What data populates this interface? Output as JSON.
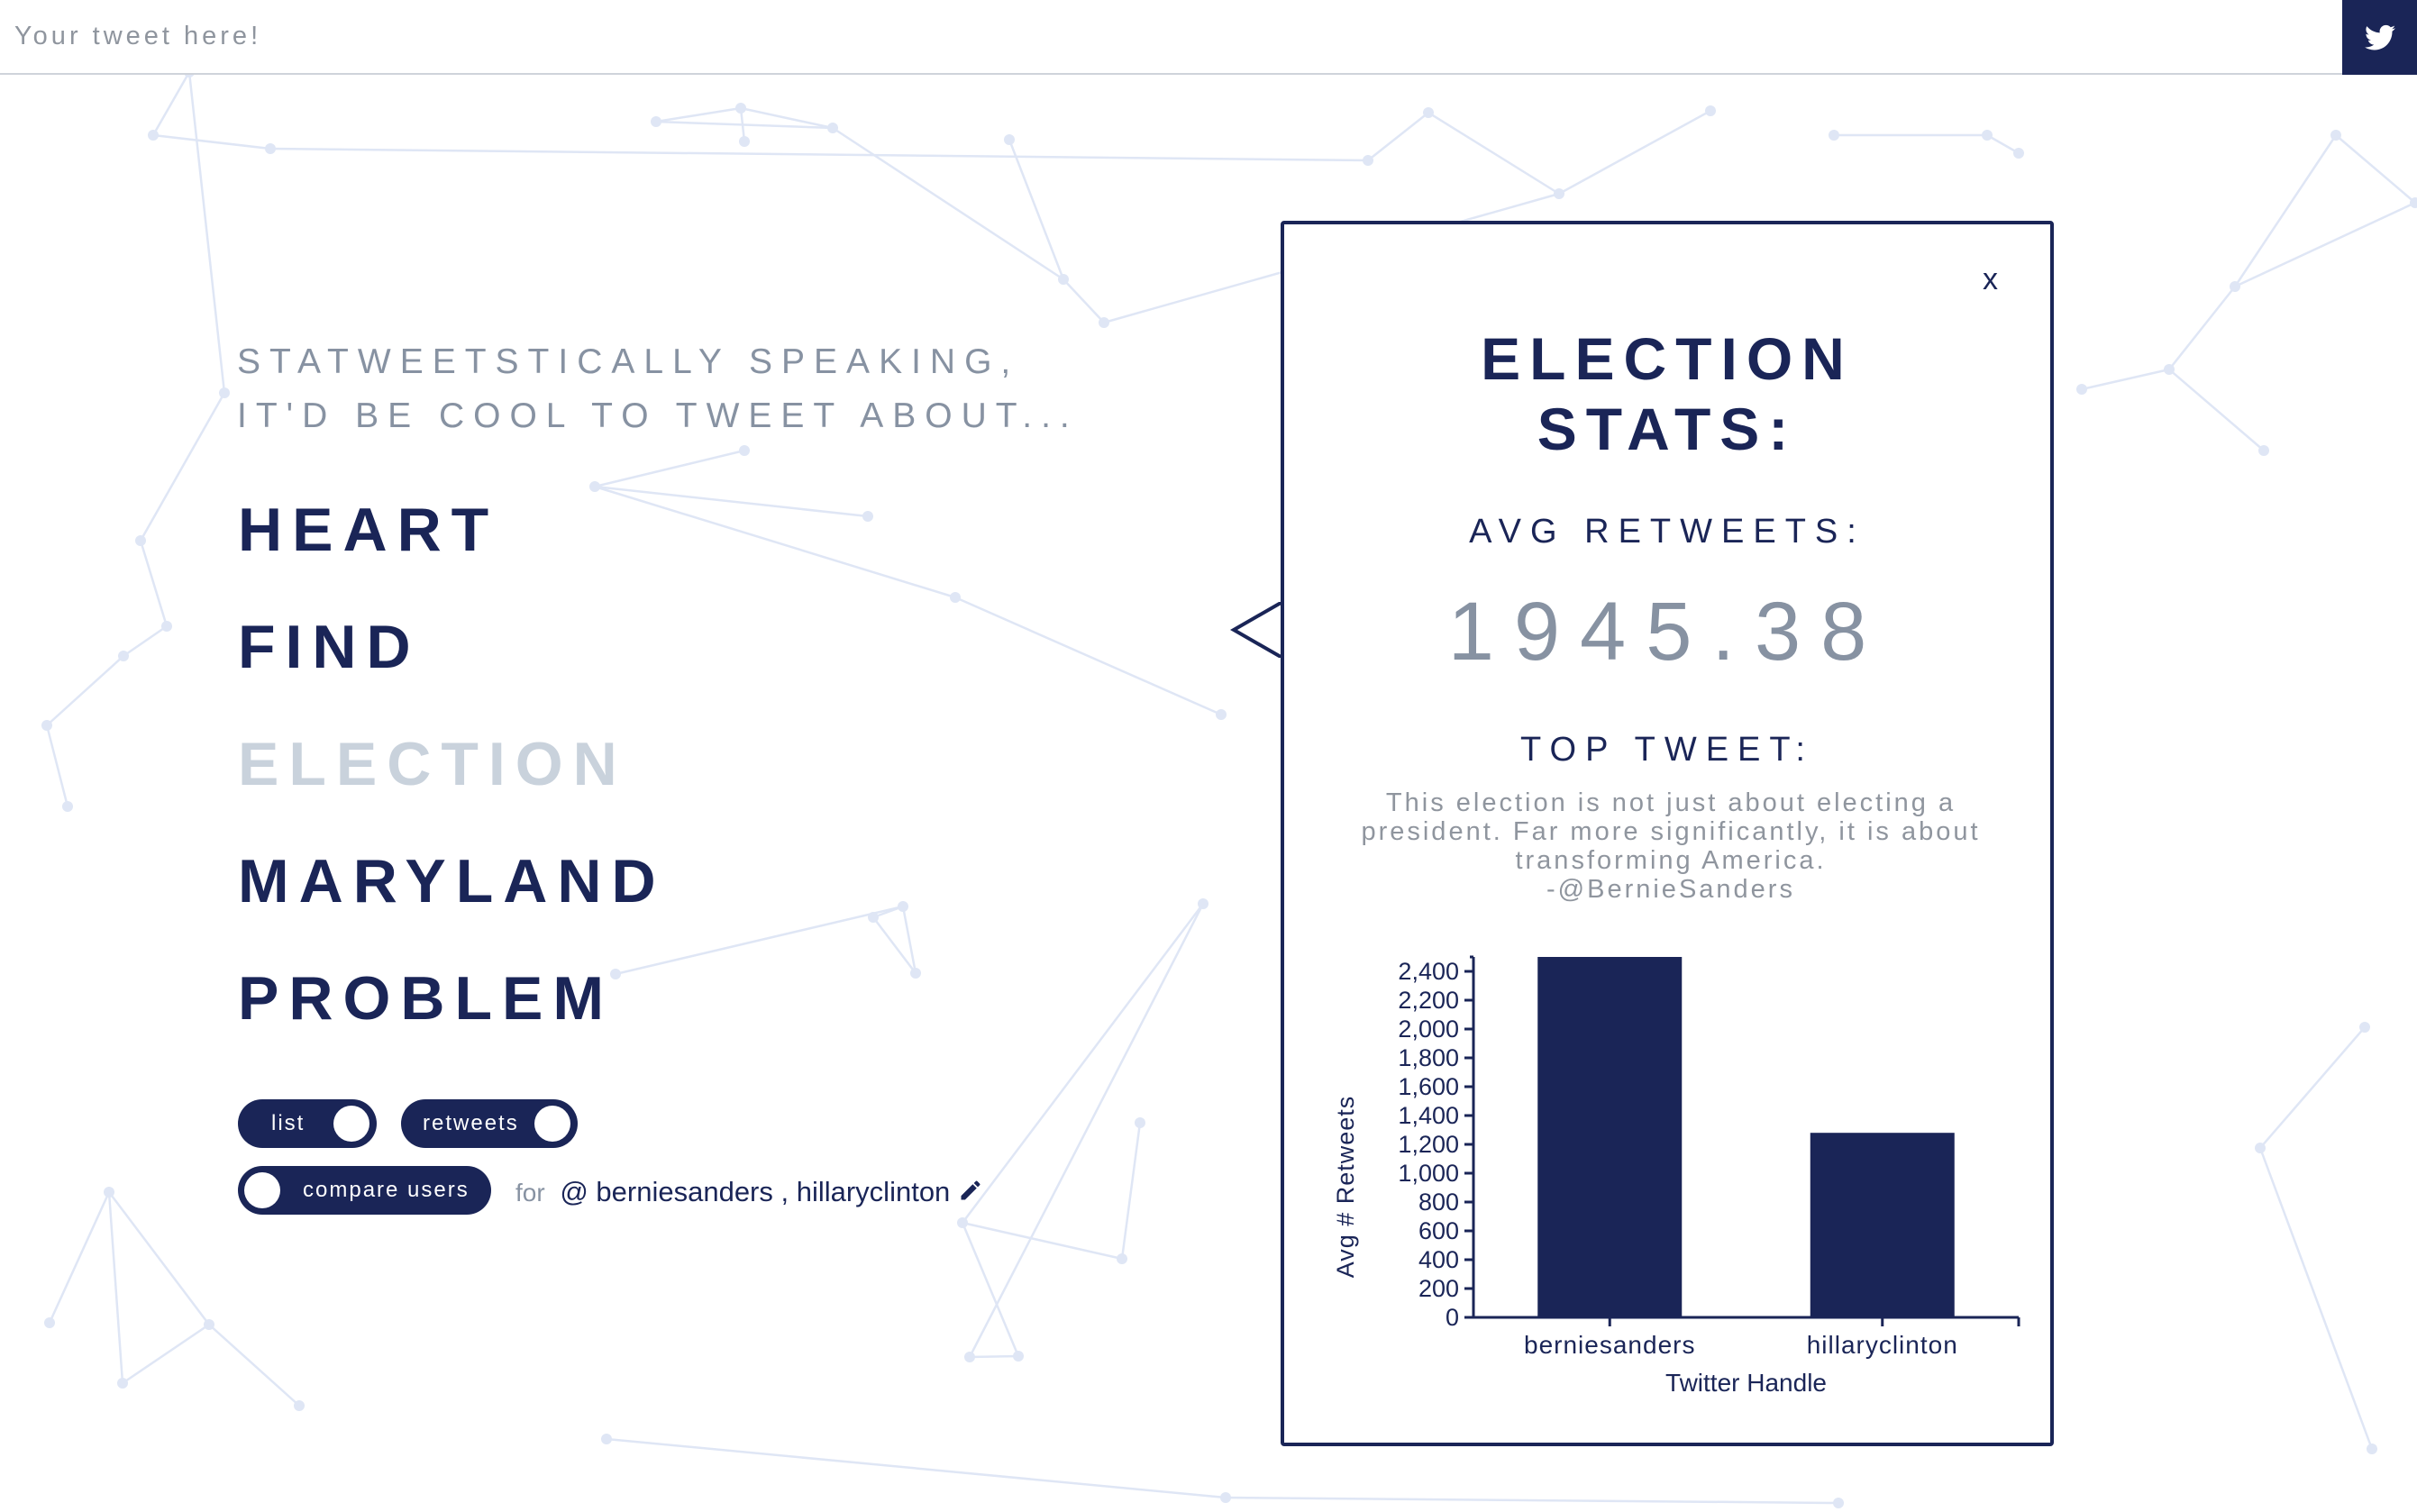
{
  "search": {
    "placeholder": "Your tweet here!"
  },
  "tweet_button": {
    "icon": "twitter-bird-icon"
  },
  "intro": {
    "line1": "STATWEETSTICALLY SPEAKING,",
    "line2": "IT'D BE COOL TO TWEET ABOUT..."
  },
  "words": [
    "HEART",
    "FIND",
    "ELECTION",
    "MARYLAND",
    "PROBLEM"
  ],
  "active_word": "ELECTION",
  "toggles": {
    "list": "list",
    "retweets": "retweets",
    "compare": "compare users"
  },
  "users": {
    "for_label": "for",
    "at": "@",
    "text": "berniesanders , hillaryclinton"
  },
  "popup": {
    "close": "x",
    "title_line1": "ELECTION",
    "title_line2": "STATS:",
    "avg_label": "AVG RETWEETS:",
    "avg_value": "1945.38",
    "top_label": "TOP TWEET:",
    "tweet_lines": [
      "This election is not just about electing a",
      "president. Far more significantly, it is about",
      "transforming America.",
      "-@BernieSanders"
    ]
  },
  "colors": {
    "navy": "#1a2557",
    "muted": "#8792a2",
    "active_word": "#c9d2dc",
    "network": "#dfe6f5"
  },
  "chart_data": {
    "type": "bar",
    "categories": [
      "berniesanders",
      "hillaryclinton"
    ],
    "values": [
      2500,
      1280
    ],
    "xlabel": "Twitter Handle",
    "ylabel": "Avg # Retweets",
    "ylim": [
      0,
      2500
    ],
    "yticks": [
      0,
      200,
      400,
      600,
      800,
      1000,
      1200,
      1400,
      1600,
      1800,
      2000,
      2200,
      2400
    ],
    "ytick_labels": [
      "0",
      "200",
      "400",
      "600",
      "800",
      "1,000",
      "1,200",
      "1,400",
      "1,600",
      "1,800",
      "2,000",
      "2,200",
      "2,400"
    ],
    "grid": false,
    "legend": "none"
  }
}
